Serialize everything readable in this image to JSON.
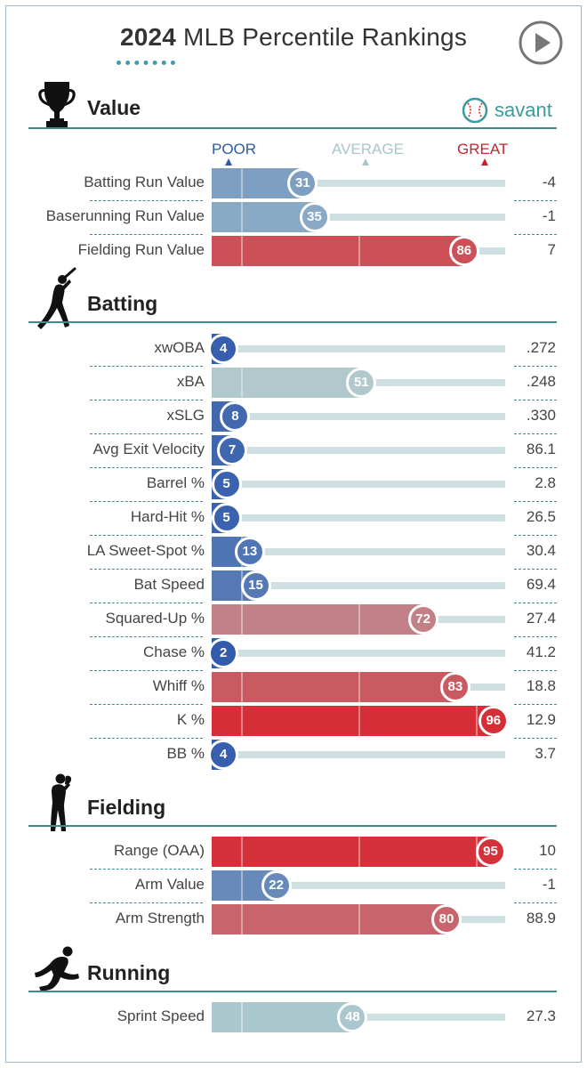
{
  "header": {
    "year": "2024",
    "title": "MLB Percentile Rankings",
    "play_icon": "play-icon",
    "logo_text": "savant",
    "logo_icon": "baseball-icon"
  },
  "scale": {
    "poor": "POOR",
    "average": "AVERAGE",
    "great": "GREAT",
    "colors": {
      "poor": "#2f5aa8",
      "average": "#a9c6cc",
      "great": "#c8232c"
    }
  },
  "sections": [
    {
      "title": "Value",
      "icon": "trophy-icon"
    },
    {
      "title": "Batting",
      "icon": "batter-icon"
    },
    {
      "title": "Fielding",
      "icon": "fielder-icon"
    },
    {
      "title": "Running",
      "icon": "runner-icon"
    }
  ],
  "chart_data": {
    "type": "bar",
    "title": "2024 MLB Percentile Rankings",
    "xlim": [
      0,
      100
    ],
    "x_meaning": "percentile",
    "series": [
      {
        "name": "Value",
        "metrics": [
          {
            "label": "Batting Run Value",
            "percentile": 31,
            "value": "-4"
          },
          {
            "label": "Baserunning Run Value",
            "percentile": 35,
            "value": "-1"
          },
          {
            "label": "Fielding Run Value",
            "percentile": 86,
            "value": "7"
          }
        ]
      },
      {
        "name": "Batting",
        "metrics": [
          {
            "label": "xwOBA",
            "percentile": 4,
            "value": ".272"
          },
          {
            "label": "xBA",
            "percentile": 51,
            "value": ".248"
          },
          {
            "label": "xSLG",
            "percentile": 8,
            "value": ".330"
          },
          {
            "label": "Avg Exit Velocity",
            "percentile": 7,
            "value": "86.1"
          },
          {
            "label": "Barrel %",
            "percentile": 5,
            "value": "2.8"
          },
          {
            "label": "Hard-Hit %",
            "percentile": 5,
            "value": "26.5"
          },
          {
            "label": "LA Sweet-Spot %",
            "percentile": 13,
            "value": "30.4"
          },
          {
            "label": "Bat Speed",
            "percentile": 15,
            "value": "69.4"
          },
          {
            "label": "Squared-Up %",
            "percentile": 72,
            "value": "27.4"
          },
          {
            "label": "Chase %",
            "percentile": 2,
            "value": "41.2"
          },
          {
            "label": "Whiff %",
            "percentile": 83,
            "value": "18.8"
          },
          {
            "label": "K %",
            "percentile": 96,
            "value": "12.9"
          },
          {
            "label": "BB %",
            "percentile": 4,
            "value": "3.7"
          }
        ]
      },
      {
        "name": "Fielding",
        "metrics": [
          {
            "label": "Range (OAA)",
            "percentile": 95,
            "value": "10"
          },
          {
            "label": "Arm Value",
            "percentile": 22,
            "value": "-1"
          },
          {
            "label": "Arm Strength",
            "percentile": 80,
            "value": "88.9"
          }
        ]
      },
      {
        "name": "Running",
        "metrics": [
          {
            "label": "Sprint Speed",
            "percentile": 48,
            "value": "27.3"
          }
        ]
      }
    ]
  }
}
